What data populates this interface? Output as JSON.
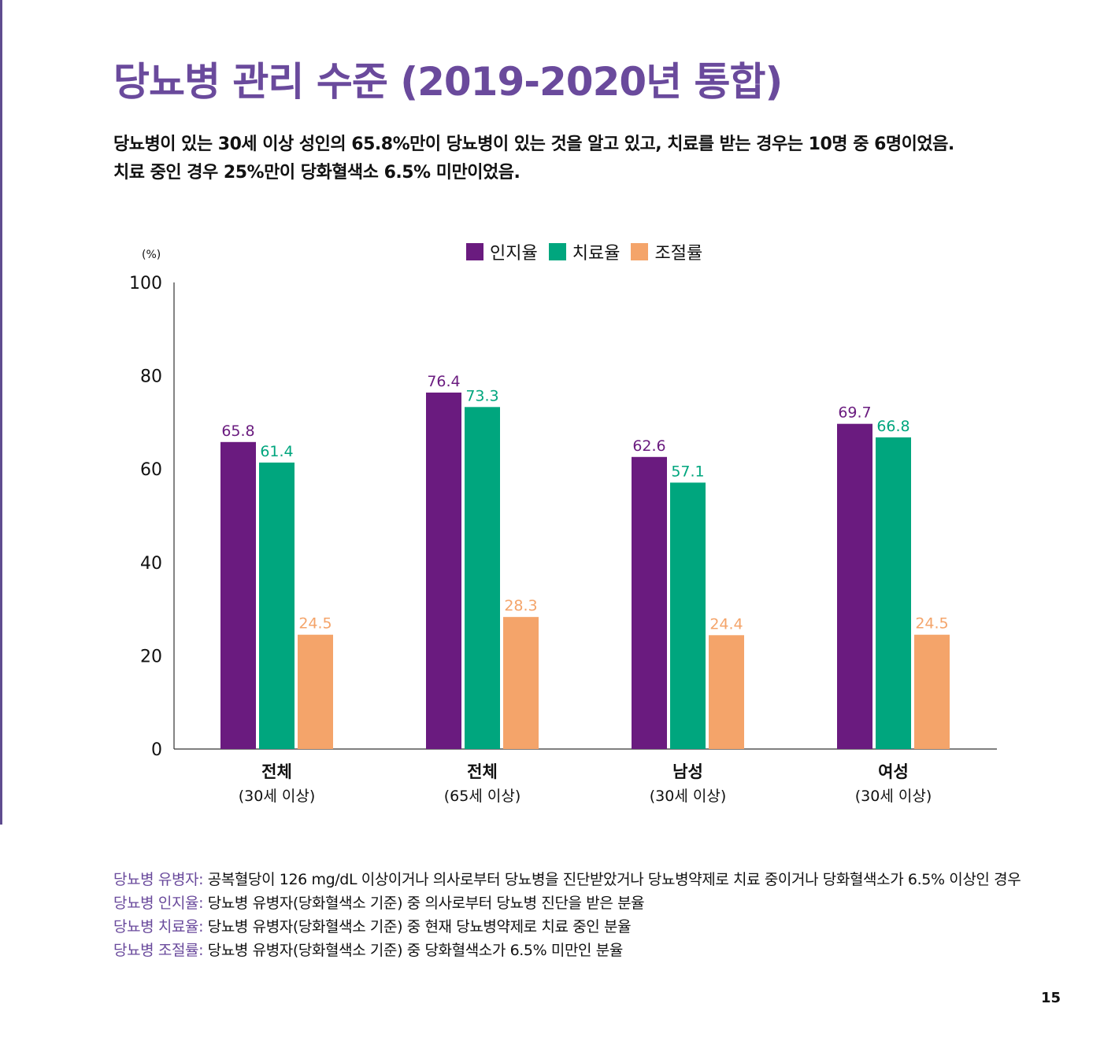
{
  "title": "당뇨병 관리 수준 (2019-2020년 통합)",
  "summary": [
    "당뇨병이 있는 30세 이상 성인의 65.8%만이 당뇨병이 있는 것을 알고 있고, 치료를 받는 경우는 10명 중 6명이었음.",
    "치료 중인 경우 25%만이 당화혈색소 6.5% 미만이었음."
  ],
  "chart_data": {
    "type": "bar",
    "unit_label": "(%)",
    "ylim": [
      0,
      100
    ],
    "yticks": [
      0,
      20,
      40,
      60,
      80,
      100
    ],
    "legend_position": "top-center",
    "categories": [
      {
        "main": "전체",
        "sub": "(30세 이상)"
      },
      {
        "main": "전체",
        "sub": "(65세 이상)"
      },
      {
        "main": "남성",
        "sub": "(30세 이상)"
      },
      {
        "main": "여성",
        "sub": "(30세 이상)"
      }
    ],
    "series": [
      {
        "name": "인지율",
        "color": "#6a1b7f",
        "values": [
          65.8,
          76.4,
          62.6,
          69.7
        ],
        "labels": [
          "65.8",
          "76.4",
          "62.6",
          "69.7"
        ]
      },
      {
        "name": "치료율",
        "color": "#00a67e",
        "values": [
          61.4,
          73.3,
          57.1,
          66.8
        ],
        "labels": [
          "61.4",
          "73.3",
          "57.1",
          "66.8"
        ]
      },
      {
        "name": "조절률",
        "color": "#f4a46a",
        "values": [
          24.5,
          28.3,
          24.4,
          24.5
        ],
        "labels": [
          "24.5",
          "28.3",
          "24.4",
          "24.5"
        ]
      }
    ]
  },
  "notes": [
    {
      "term": "당뇨병 유병자:",
      "text": " 공복혈당이 126 mg/dL 이상이거나 의사로부터 당뇨병을 진단받았거나 당뇨병약제로 치료 중이거나 당화혈색소가 6.5% 이상인 경우"
    },
    {
      "term": "당뇨병 인지율:",
      "text": " 당뇨병 유병자(당화혈색소 기준) 중 의사로부터 당뇨병 진단을 받은 분율"
    },
    {
      "term": "당뇨병 치료율:",
      "text": " 당뇨병 유병자(당화혈색소 기준) 중 현재 당뇨병약제로 치료 중인 분율"
    },
    {
      "term": "당뇨병 조절률:",
      "text": " 당뇨병 유병자(당화혈색소 기준) 중 당화혈색소가 6.5% 미만인 분율"
    }
  ],
  "page_number": "15"
}
